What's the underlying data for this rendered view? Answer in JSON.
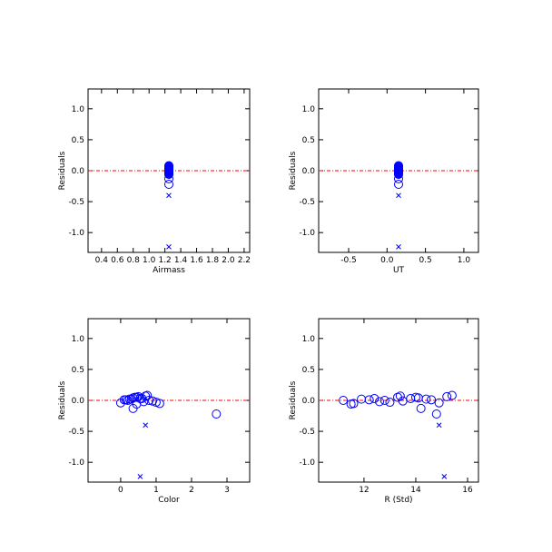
{
  "chart_data": [
    {
      "type": "scatter",
      "xlabel": "Airmass",
      "ylabel": "Residuals",
      "xlim": [
        0.23,
        2.27
      ],
      "ylim": [
        -1.32,
        1.32
      ],
      "xticks": [
        0.4,
        0.6,
        0.8,
        {
          "value": 1.0,
          "label": "1.0"
        },
        1.2,
        1.4,
        1.6,
        1.8,
        {
          "value": 2.0,
          "label": "2.0"
        },
        2.2
      ],
      "yticks": [
        {
          "value": 1.0,
          "label": "1.0"
        },
        0.5,
        {
          "value": 0.0,
          "label": "0.0"
        },
        -0.5,
        {
          "value": -1.0,
          "label": "-1.0"
        }
      ],
      "hline": 0,
      "hline_color": "#ff0000",
      "series": [
        {
          "marker": "circle",
          "color": "#0000ff",
          "x": [
            1.25,
            1.25,
            1.25,
            1.25,
            1.25,
            1.25,
            1.25,
            1.25,
            1.25,
            1.25,
            1.25,
            1.25,
            1.25,
            1.25,
            1.25,
            1.25,
            1.25,
            1.25,
            1.25,
            1.25,
            1.25,
            1.25
          ],
          "y": [
            0.08,
            0.06,
            0.05,
            0.04,
            0.03,
            0.02,
            0.01,
            0.0,
            -0.01,
            -0.02,
            -0.03,
            -0.05,
            0.02,
            0.05,
            0.03,
            0.0,
            -0.04,
            0.07,
            0.01,
            -0.06,
            -0.13,
            -0.22
          ]
        },
        {
          "marker": "x",
          "color": "#0000ff",
          "x": [
            1.25,
            1.25
          ],
          "y": [
            -0.4,
            -1.23
          ]
        }
      ]
    },
    {
      "type": "scatter",
      "xlabel": "UT",
      "ylabel": "Residuals",
      "xlim": [
        -0.89,
        1.19
      ],
      "ylim": [
        -1.32,
        1.32
      ],
      "xticks": [
        -0.5,
        {
          "value": 0.0,
          "label": "0.0"
        },
        0.5,
        {
          "value": 1.0,
          "label": "1.0"
        }
      ],
      "yticks": [
        {
          "value": 1.0,
          "label": "1.0"
        },
        0.5,
        {
          "value": 0.0,
          "label": "0.0"
        },
        -0.5,
        {
          "value": -1.0,
          "label": "-1.0"
        }
      ],
      "hline": 0,
      "hline_color": "#ff0000",
      "series": [
        {
          "marker": "circle",
          "color": "#0000ff",
          "x": [
            0.15,
            0.15,
            0.15,
            0.15,
            0.15,
            0.15,
            0.15,
            0.15,
            0.15,
            0.15,
            0.15,
            0.15,
            0.15,
            0.15,
            0.15,
            0.15,
            0.15,
            0.15,
            0.15,
            0.15,
            0.15,
            0.15
          ],
          "y": [
            0.08,
            0.06,
            0.05,
            0.04,
            0.03,
            0.02,
            0.01,
            0.0,
            -0.01,
            -0.02,
            -0.03,
            -0.05,
            0.02,
            0.05,
            0.03,
            0.0,
            -0.04,
            0.07,
            0.01,
            -0.06,
            -0.13,
            -0.22
          ]
        },
        {
          "marker": "x",
          "color": "#0000ff",
          "x": [
            0.15,
            0.15
          ],
          "y": [
            -0.4,
            -1.23
          ]
        }
      ]
    },
    {
      "type": "scatter",
      "xlabel": "Color",
      "ylabel": "Residuals",
      "xlim": [
        -0.92,
        3.64
      ],
      "ylim": [
        -1.32,
        1.32
      ],
      "xticks": [
        0,
        1,
        2,
        3
      ],
      "yticks": [
        {
          "value": 1.0,
          "label": "1.0"
        },
        0.5,
        {
          "value": 0.0,
          "label": "0.0"
        },
        -0.5,
        {
          "value": -1.0,
          "label": "-1.0"
        }
      ],
      "hline": 0,
      "hline_color": "#ff0000",
      "series": [
        {
          "marker": "circle",
          "color": "#0000ff",
          "x": [
            0.75,
            0.5,
            0.45,
            0.35,
            0.6,
            0.3,
            0.1,
            0.2,
            0.9,
            0.65,
            1.0,
            1.1,
            0.25,
            0.4,
            0.55,
            0.8,
            0.0,
            0.7,
            0.15,
            0.45,
            0.35,
            2.7
          ],
          "y": [
            0.08,
            0.06,
            0.05,
            0.04,
            0.03,
            0.02,
            0.01,
            0.0,
            -0.01,
            -0.02,
            -0.03,
            -0.05,
            0.02,
            0.05,
            0.03,
            0.0,
            -0.04,
            0.07,
            0.01,
            -0.06,
            -0.13,
            -0.22
          ]
        },
        {
          "marker": "x",
          "color": "#0000ff",
          "x": [
            0.7,
            0.55
          ],
          "y": [
            -0.4,
            -1.23
          ]
        }
      ]
    },
    {
      "type": "scatter",
      "xlabel": "R (Std)",
      "ylabel": "Residuals",
      "xlim": [
        10.25,
        16.42
      ],
      "ylim": [
        -1.32,
        1.32
      ],
      "xticks": [
        12,
        14,
        16
      ],
      "yticks": [
        {
          "value": 1.0,
          "label": "1.0"
        },
        0.5,
        {
          "value": 0.0,
          "label": "0.0"
        },
        -0.5,
        {
          "value": -1.0,
          "label": "-1.0"
        }
      ],
      "hline": 0,
      "hline_color": "#ff0000",
      "series": [
        {
          "marker": "circle",
          "color": "#0000ff",
          "x": [
            15.4,
            15.2,
            13.3,
            14.1,
            12.4,
            11.9,
            14.6,
            11.2,
            13.5,
            12.6,
            13.0,
            11.6,
            14.4,
            14.0,
            13.8,
            12.8,
            14.9,
            13.4,
            12.2,
            11.5,
            14.2,
            14.8
          ],
          "y": [
            0.08,
            0.06,
            0.05,
            0.04,
            0.03,
            0.02,
            0.01,
            0.0,
            -0.01,
            -0.02,
            -0.03,
            -0.05,
            0.02,
            0.05,
            0.03,
            0.0,
            -0.04,
            0.07,
            0.01,
            -0.06,
            -0.13,
            -0.22
          ]
        },
        {
          "marker": "x",
          "color": "#0000ff",
          "x": [
            14.9,
            15.1
          ],
          "y": [
            -0.4,
            -1.23
          ]
        }
      ]
    }
  ]
}
